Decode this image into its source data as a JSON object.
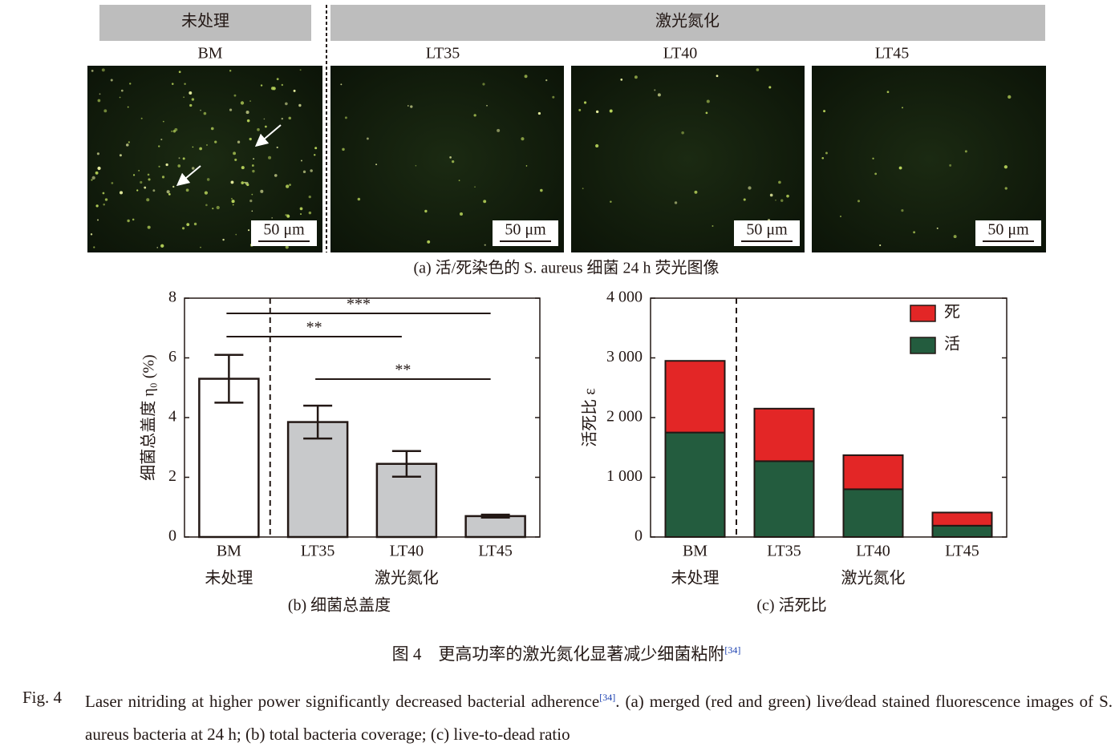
{
  "panel_a": {
    "headers": [
      "未处理",
      "激光氮化"
    ],
    "samples": [
      "BM",
      "LT35",
      "LT40",
      "LT45"
    ],
    "scale_bars": [
      "50 μm",
      "50 μm",
      "50 μm",
      "50 μm"
    ],
    "caption": "(a) 活/死染色的 S. aureus 细菌 24 h 荧光图像"
  },
  "chart_data": [
    {
      "type": "bar",
      "caption": "(b) 细菌总盖度",
      "y_label": "细菌总盖度 η₀ (%)",
      "categories": [
        "BM",
        "LT35",
        "LT40",
        "LT45"
      ],
      "groups": [
        {
          "label": "未处理",
          "categories": [
            "BM"
          ]
        },
        {
          "label": "激光氮化",
          "categories": [
            "LT35",
            "LT40",
            "LT45"
          ]
        }
      ],
      "values": [
        5.3,
        3.85,
        2.45,
        0.7
      ],
      "errors": [
        0.8,
        0.55,
        0.43,
        0.05
      ],
      "colors": [
        "#ffffff",
        "#c8c9cb",
        "#c8c9cb",
        "#c8c9cb"
      ],
      "ylim": [
        0,
        8
      ],
      "yticks": [
        0,
        2,
        4,
        6,
        8
      ],
      "significance": [
        {
          "label": "***",
          "from": "BM",
          "to": "LT45"
        },
        {
          "label": "**",
          "from": "BM",
          "to": "LT40"
        },
        {
          "label": "**",
          "from": "LT35",
          "to": "LT45"
        }
      ]
    },
    {
      "type": "stacked_bar",
      "caption": "(c) 活死比",
      "y_label": "活死比 ε",
      "categories": [
        "BM",
        "LT35",
        "LT40",
        "LT45"
      ],
      "groups": [
        {
          "label": "未处理",
          "categories": [
            "BM"
          ]
        },
        {
          "label": "激光氮化",
          "categories": [
            "LT35",
            "LT40",
            "LT45"
          ]
        }
      ],
      "series": [
        {
          "name": "活",
          "color": "#235c3e",
          "values": [
            1750,
            1270,
            800,
            190
          ]
        },
        {
          "name": "死",
          "color": "#e32626",
          "values": [
            1200,
            880,
            570,
            220
          ]
        }
      ],
      "ylim": [
        0,
        4000
      ],
      "yticks": [
        0,
        {
          "value": 1000,
          "label": "1 000"
        },
        {
          "value": 2000,
          "label": "2 000"
        },
        {
          "value": 3000,
          "label": "3 000"
        },
        {
          "value": 4000,
          "label": "4 000"
        }
      ]
    }
  ],
  "figure_caption": {
    "zh_label": "图 4",
    "zh_text": "更高功率的激光氮化显著减少细菌粘附",
    "zh_ref": "[34]",
    "en_label": "Fig. 4",
    "en_text": "Laser nitriding at higher power significantly decreased bacterial adherence",
    "en_ref": "[34]",
    "en_text_2": ". (a) merged (red and green) live∕dead stained fluorescence images of S. aureus bacteria at 24 h; (b) total bacteria coverage; (c) live-to-dead ratio"
  }
}
